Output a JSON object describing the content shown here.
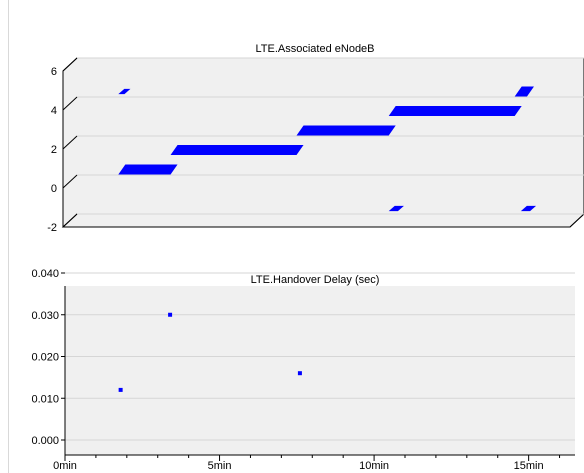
{
  "chart_data": [
    {
      "type": "scatter",
      "title": "LTE.Associated eNodeB",
      "xlabel": "",
      "ylabel": "",
      "ylim": [
        -2,
        6
      ],
      "xlim_min": [
        0,
        16.5
      ],
      "y_ticks": [
        "-2",
        "0",
        "2",
        "4",
        "6"
      ],
      "style": "3d-band",
      "grid": true,
      "series": [
        {
          "values": [
            {
              "x_start": 1.8,
              "x_end": 3.5,
              "y": 1
            },
            {
              "x_start": 3.5,
              "x_end": 7.6,
              "y": 2
            },
            {
              "x_start": 7.6,
              "x_end": 10.6,
              "y": 3
            },
            {
              "x_start": 10.6,
              "x_end": 14.7,
              "y": 4
            },
            {
              "x_start": 14.7,
              "x_end": 15.1,
              "y": 5
            },
            {
              "x_start": 1.8,
              "x_end": 2.0,
              "y": 5
            },
            {
              "x_start": 10.6,
              "x_end": 10.9,
              "y": -1
            },
            {
              "x_start": 14.9,
              "x_end": 15.2,
              "y": -1
            }
          ]
        }
      ]
    },
    {
      "type": "scatter",
      "title": "LTE.Handover Delay (sec)",
      "xlabel": "",
      "ylabel": "",
      "ylim": [
        0.0,
        0.04
      ],
      "xlim_min": [
        0,
        16.5
      ],
      "y_ticks": [
        "0.000",
        "0.010",
        "0.020",
        "0.030",
        "0.040"
      ],
      "x_ticks": [
        {
          "label": "0min",
          "value": 0
        },
        {
          "label": "5min",
          "value": 5
        },
        {
          "label": "10min",
          "value": 10
        },
        {
          "label": "15min",
          "value": 15
        }
      ],
      "grid": true,
      "series": [
        {
          "values": [
            {
              "x": 1.8,
              "y": 0.012
            },
            {
              "x": 3.4,
              "y": 0.03
            },
            {
              "x": 7.6,
              "y": 0.016
            }
          ]
        }
      ]
    }
  ],
  "colors": {
    "series": "#0000ff",
    "plot_bg": "#f0f0f0",
    "grid": "#d6d6d6",
    "axis": "#000000"
  }
}
